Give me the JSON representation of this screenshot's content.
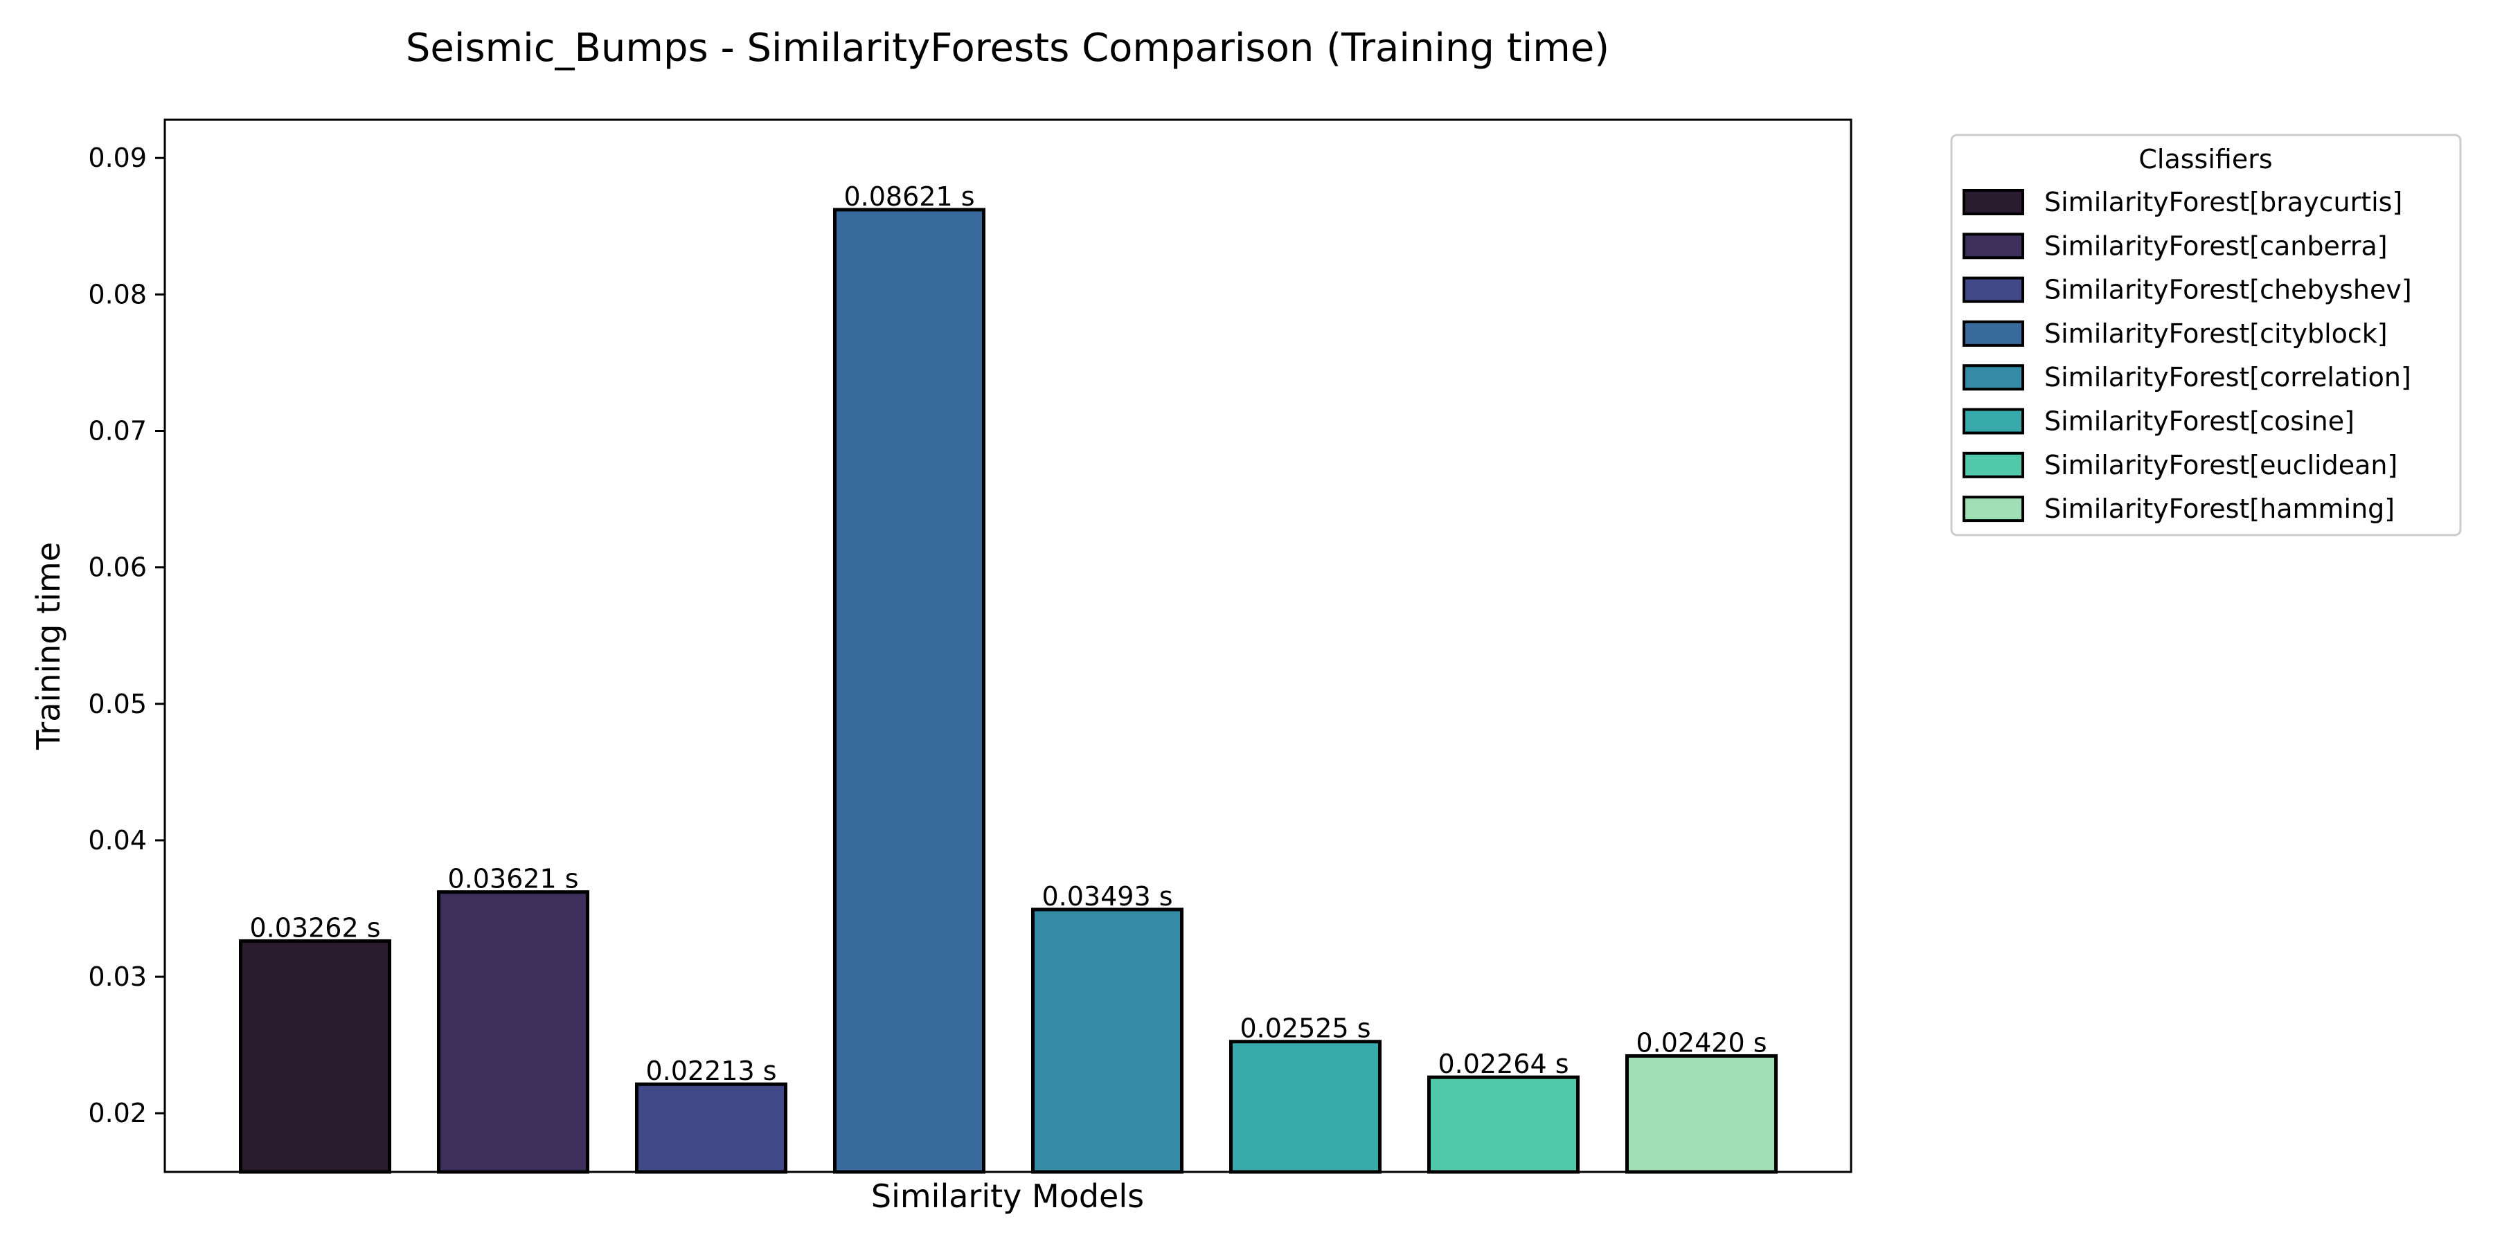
{
  "chart_data": {
    "type": "bar",
    "title": "Seismic_Bumps - SimilarityForests Comparison (Training time)",
    "xlabel": "Similarity Models",
    "ylabel": "Training time",
    "ylim": [
      0.0157,
      0.0928
    ],
    "yticks": [
      0.02,
      0.03,
      0.04,
      0.05,
      0.06,
      0.07,
      0.08,
      0.09
    ],
    "ytick_labels": [
      "0.02",
      "0.03",
      "0.04",
      "0.05",
      "0.06",
      "0.07",
      "0.08",
      "0.09"
    ],
    "categories": [
      "SimilarityForest[braycurtis]",
      "SimilarityForest[canberra]",
      "SimilarityForest[chebyshev]",
      "SimilarityForest[cityblock]",
      "SimilarityForest[correlation]",
      "SimilarityForest[cosine]",
      "SimilarityForest[euclidean]",
      "SimilarityForest[hamming]"
    ],
    "values": [
      0.03262,
      0.03621,
      0.02213,
      0.08621,
      0.03493,
      0.02525,
      0.02264,
      0.0242
    ],
    "data_labels": [
      "0.03262 s",
      "0.03621 s",
      "0.02213 s",
      "0.08621 s",
      "0.03493 s",
      "0.02525 s",
      "0.02264 s",
      "0.02420 s"
    ],
    "colors": [
      "#2a1b2f",
      "#3c2f5b",
      "#414888",
      "#386a9d",
      "#338ba6",
      "#38aaac",
      "#52c8ab",
      "#a0dfb6"
    ],
    "grid": false,
    "legend": {
      "title": "Classifiers",
      "placement": "outside-top-right"
    }
  }
}
